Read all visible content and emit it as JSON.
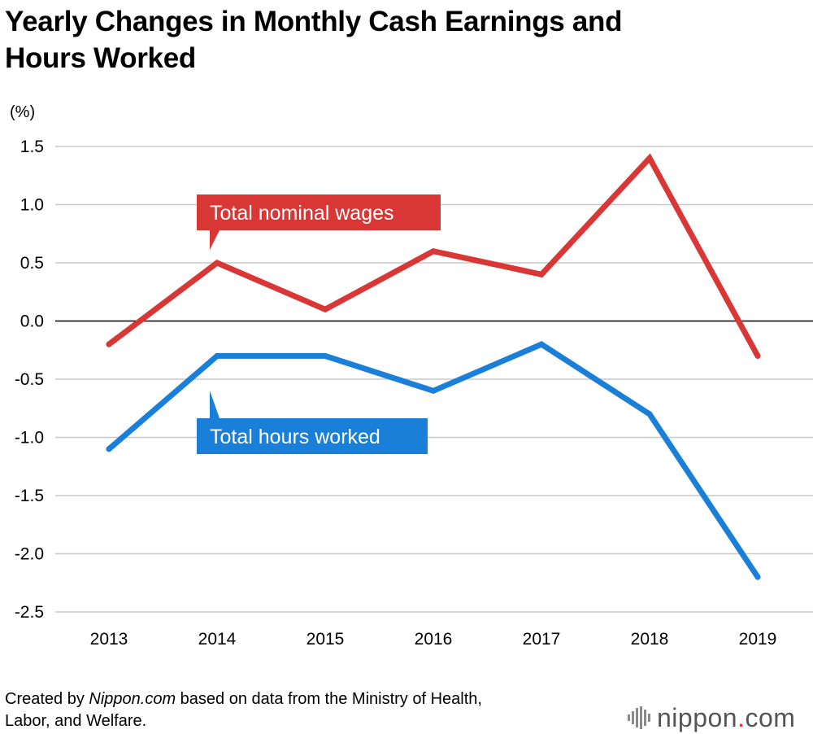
{
  "title_line1": "Yearly Changes in Monthly Cash Earnings and",
  "title_line2": "Hours Worked",
  "footer": {
    "line1_pre": "Created by ",
    "line1_italic": "Nippon.com",
    "line1_post": " based on data from the Ministry of Health,",
    "line2": "Labor, and Welfare."
  },
  "logo": {
    "name": "nippon",
    "dot": ".",
    "tld": "com"
  },
  "chart_data": {
    "type": "line",
    "title": "Yearly Changes in Monthly Cash Earnings and Hours Worked",
    "ylabel": "(%)",
    "xlabel": "",
    "x": [
      "2013",
      "2014",
      "2015",
      "2016",
      "2017",
      "2018",
      "2019"
    ],
    "ylim": [
      -2.5,
      1.5
    ],
    "yticks": [
      1.5,
      1.0,
      0.5,
      0.0,
      -0.5,
      -1.0,
      -1.5,
      -2.0,
      -2.5
    ],
    "ytick_labels": [
      "1.5",
      "1.0",
      "0.5",
      "0.0",
      "-0.5",
      "-1.0",
      "-1.5",
      "-2.0",
      "-2.5"
    ],
    "grid": true,
    "series": [
      {
        "name": "Total nominal wages",
        "color": "#d93636",
        "values": [
          -0.2,
          0.5,
          0.1,
          0.6,
          0.4,
          1.4,
          -0.3
        ]
      },
      {
        "name": "Total hours worked",
        "color": "#1a7fd9",
        "values": [
          -1.1,
          -0.3,
          -0.3,
          -0.6,
          -0.2,
          -0.8,
          -2.2
        ]
      }
    ]
  }
}
